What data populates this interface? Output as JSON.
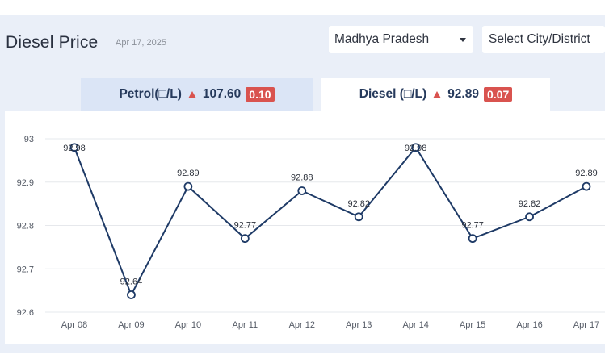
{
  "header": {
    "title": "Diesel Price",
    "date": "Apr 17, 2025",
    "state_select": "Madhya Pradesh",
    "city_select_placeholder": "Select City/District"
  },
  "tabs": [
    {
      "label": "Petrol(□/L)",
      "price": "107.60",
      "change": "0.10",
      "active": false
    },
    {
      "label": "Diesel (□/L)",
      "price": "92.89",
      "change": "0.07",
      "active": true
    }
  ],
  "colors": {
    "line": "#1e3a66",
    "change_badge": "#d9534f",
    "grid": "#e6e8ec",
    "panel": "#eaeff8"
  },
  "icons": {
    "dropdown": "chevron-down-icon",
    "change": "triangle-up-icon"
  },
  "chart_data": {
    "type": "line",
    "categories": [
      "Apr 08",
      "Apr 09",
      "Apr 10",
      "Apr 11",
      "Apr 12",
      "Apr 13",
      "Apr 14",
      "Apr 15",
      "Apr 16",
      "Apr 17"
    ],
    "values": [
      92.98,
      92.64,
      92.89,
      92.77,
      92.88,
      92.82,
      92.98,
      92.77,
      92.82,
      92.89
    ],
    "data_labels": [
      "92.98",
      "92.64",
      "92.89",
      "92.77",
      "92.88",
      "92.82",
      "92.98",
      "92.77",
      "92.82",
      "92.89"
    ],
    "yticks": [
      93,
      92.9,
      92.8,
      92.7,
      92.6
    ],
    "ytick_labels": [
      "93",
      "92.9",
      "92.8",
      "92.7",
      "92.6"
    ],
    "ylim": [
      92.6,
      93
    ],
    "grid": true,
    "title": "",
    "xlabel": "",
    "ylabel": ""
  }
}
